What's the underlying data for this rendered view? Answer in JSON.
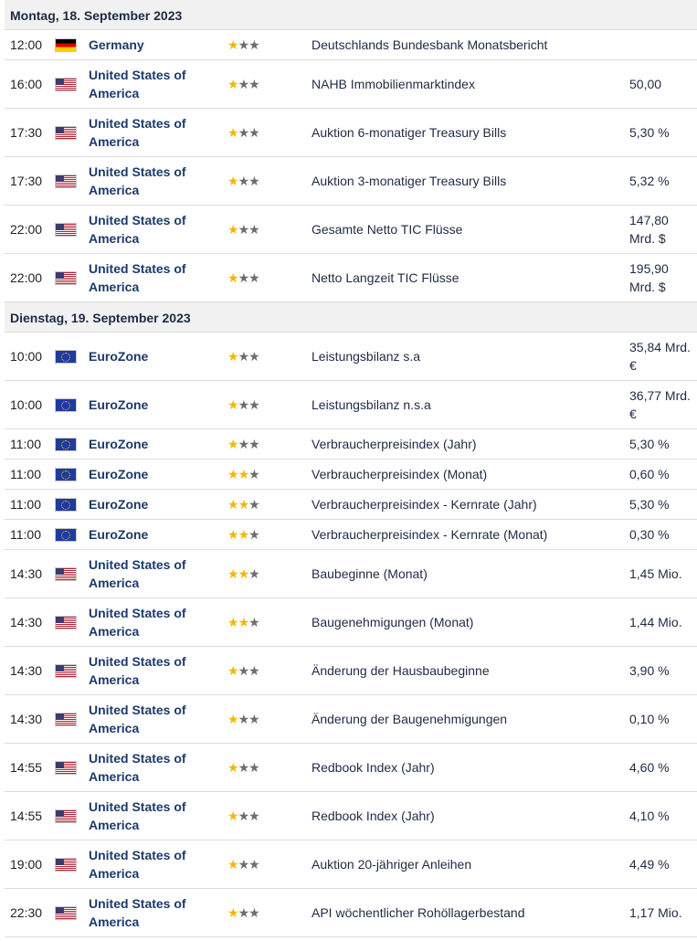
{
  "colors": {
    "header_bg": "#f1f1f1",
    "country_text": "#1b3a6b",
    "star_active": "#f2b705",
    "star_inactive": "#6d6d6d"
  },
  "days": [
    {
      "title": "Montag, 18. September 2023",
      "events": [
        {
          "time": "12:00",
          "flag": "de",
          "flag_icon": "germany-flag-icon",
          "country": "Germany",
          "importance": 1,
          "event": "Deutschlands Bundesbank Monatsbericht",
          "actual": ""
        },
        {
          "time": "16:00",
          "flag": "us",
          "flag_icon": "usa-flag-icon",
          "country": "United States of America",
          "importance": 1,
          "event": "NAHB Immobilienmarktindex",
          "actual": "50,00"
        },
        {
          "time": "17:30",
          "flag": "us",
          "flag_icon": "usa-flag-icon",
          "country": "United States of America",
          "importance": 1,
          "event": "Auktion 6-monatiger Treasury Bills",
          "actual": "5,30 %"
        },
        {
          "time": "17:30",
          "flag": "us",
          "flag_icon": "usa-flag-icon",
          "country": "United States of America",
          "importance": 1,
          "event": "Auktion 3-monatiger Treasury Bills",
          "actual": "5,32 %"
        },
        {
          "time": "22:00",
          "flag": "us",
          "flag_icon": "usa-flag-icon",
          "country": "United States of America",
          "importance": 1,
          "event": "Gesamte Netto TIC Flüsse",
          "actual": "147,80 Mrd. $"
        },
        {
          "time": "22:00",
          "flag": "us",
          "flag_icon": "usa-flag-icon",
          "country": "United States of America",
          "importance": 1,
          "event": "Netto Langzeit TIC Flüsse",
          "actual": "195,90 Mrd. $"
        }
      ]
    },
    {
      "title": "Dienstag, 19. September 2023",
      "events": [
        {
          "time": "10:00",
          "flag": "eu",
          "flag_icon": "eurozone-flag-icon",
          "country": "EuroZone",
          "importance": 1,
          "event": "Leistungsbilanz s.a",
          "actual": "35,84 Mrd. €"
        },
        {
          "time": "10:00",
          "flag": "eu",
          "flag_icon": "eurozone-flag-icon",
          "country": "EuroZone",
          "importance": 1,
          "event": "Leistungsbilanz n.s.a",
          "actual": "36,77 Mrd. €"
        },
        {
          "time": "11:00",
          "flag": "eu",
          "flag_icon": "eurozone-flag-icon",
          "country": "EuroZone",
          "importance": 1,
          "event": "Verbraucherpreisindex (Jahr)",
          "actual": "5,30 %"
        },
        {
          "time": "11:00",
          "flag": "eu",
          "flag_icon": "eurozone-flag-icon",
          "country": "EuroZone",
          "importance": 2,
          "event": "Verbraucherpreisindex (Monat)",
          "actual": "0,60 %"
        },
        {
          "time": "11:00",
          "flag": "eu",
          "flag_icon": "eurozone-flag-icon",
          "country": "EuroZone",
          "importance": 2,
          "event": "Verbraucherpreisindex - Kernrate (Jahr)",
          "actual": "5,30 %"
        },
        {
          "time": "11:00",
          "flag": "eu",
          "flag_icon": "eurozone-flag-icon",
          "country": "EuroZone",
          "importance": 2,
          "event": "Verbraucherpreisindex - Kernrate (Monat)",
          "actual": "0,30 %"
        },
        {
          "time": "14:30",
          "flag": "us",
          "flag_icon": "usa-flag-icon",
          "country": "United States of America",
          "importance": 2,
          "event": "Baubeginne (Monat)",
          "actual": "1,45 Mio."
        },
        {
          "time": "14:30",
          "flag": "us",
          "flag_icon": "usa-flag-icon",
          "country": "United States of America",
          "importance": 2,
          "event": "Baugenehmigungen (Monat)",
          "actual": "1,44 Mio."
        },
        {
          "time": "14:30",
          "flag": "us",
          "flag_icon": "usa-flag-icon",
          "country": "United States of America",
          "importance": 1,
          "event": "Änderung der Hausbaubeginne",
          "actual": "3,90 %"
        },
        {
          "time": "14:30",
          "flag": "us",
          "flag_icon": "usa-flag-icon",
          "country": "United States of America",
          "importance": 1,
          "event": "Änderung der Baugenehmigungen",
          "actual": "0,10 %"
        },
        {
          "time": "14:55",
          "flag": "us",
          "flag_icon": "usa-flag-icon",
          "country": "United States of America",
          "importance": 1,
          "event": "Redbook Index (Jahr)",
          "actual": "4,60 %"
        },
        {
          "time": "14:55",
          "flag": "us",
          "flag_icon": "usa-flag-icon",
          "country": "United States of America",
          "importance": 1,
          "event": "Redbook Index (Jahr)",
          "actual": "4,10 %"
        },
        {
          "time": "19:00",
          "flag": "us",
          "flag_icon": "usa-flag-icon",
          "country": "United States of America",
          "importance": 1,
          "event": "Auktion 20-jähriger Anleihen",
          "actual": "4,49 %"
        },
        {
          "time": "22:30",
          "flag": "us",
          "flag_icon": "usa-flag-icon",
          "country": "United States of America",
          "importance": 1,
          "event": "API wöchentlicher Rohöllagerbestand",
          "actual": "1,17 Mio."
        }
      ]
    }
  ]
}
